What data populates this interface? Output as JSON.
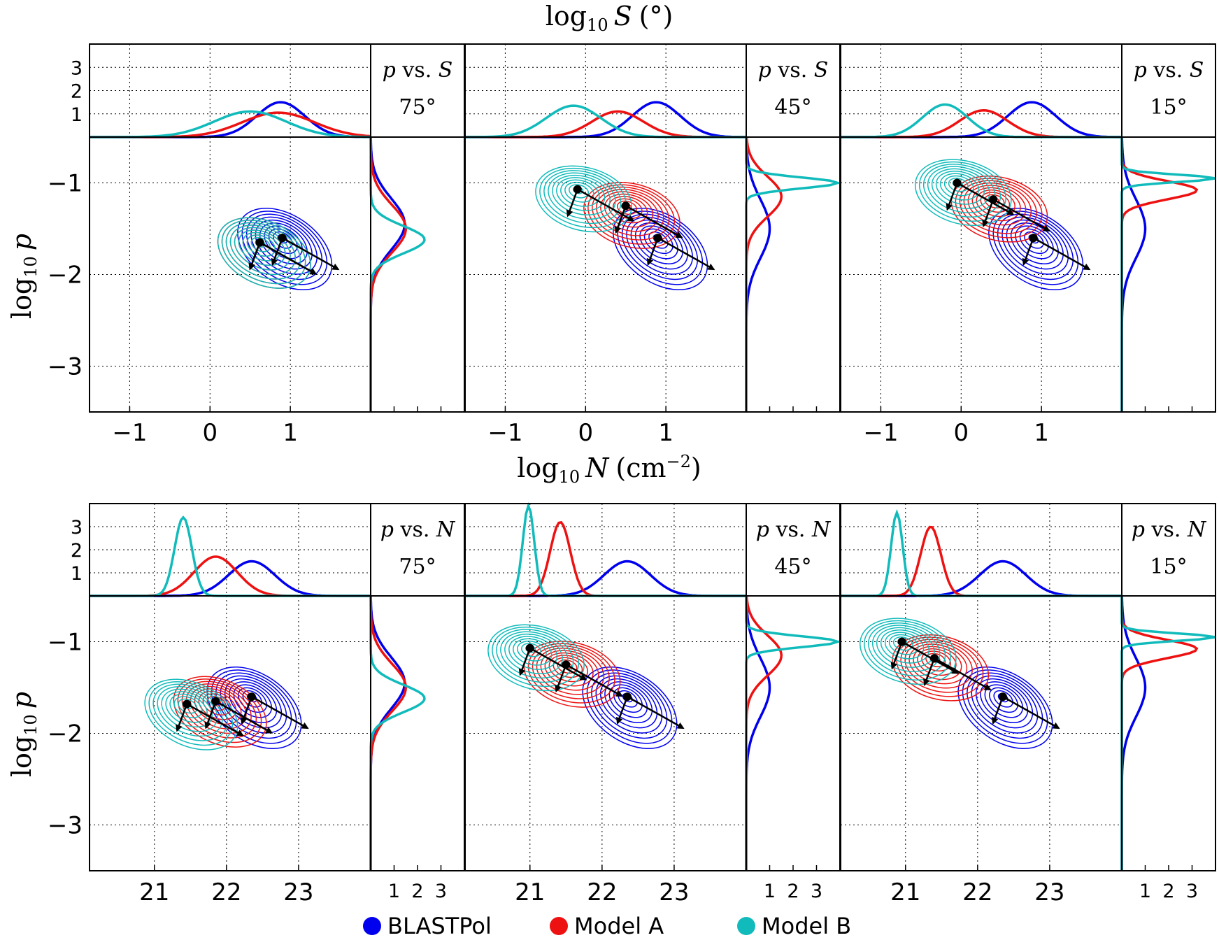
{
  "chart_data": {
    "type": "contour",
    "x_axis_title_top": {
      "prefix": "log",
      "sub": "10",
      "var": "S",
      "unit": "(°)"
    },
    "x_axis_title_bottom": {
      "prefix": "log",
      "sub": "10",
      "var": "N",
      "unit": "(cm",
      "sup": "−2",
      "close": ")"
    },
    "y_axis_title": {
      "prefix": "log",
      "sub": "10",
      "var": "p"
    },
    "rows": [
      {
        "name": "p-vs-S",
        "xlim": [
          -1.5,
          2.0
        ],
        "x_ticks": [
          "−1",
          "0",
          "1"
        ],
        "x_tick_values": [
          -1,
          0,
          1
        ],
        "panels": [
          {
            "label": "p vs. S",
            "label_var": "p",
            "label_mid": " vs. ",
            "label_xvar": "S",
            "angle": "75°",
            "centers": [
              {
                "series": "BLASTPol",
                "x": 0.9,
                "y": -1.6
              },
              {
                "series": "Model A",
                "x": 0.62,
                "y": -1.65
              },
              {
                "series": "Model B",
                "x": 0.62,
                "y": -1.65
              }
            ],
            "hist_x": [
              {
                "series": "BLASTPol",
                "mu": 0.88,
                "sigma": 0.3,
                "peak": 1.5
              },
              {
                "series": "Model A",
                "mu": 0.85,
                "sigma": 0.45,
                "peak": 1.05
              },
              {
                "series": "Model B",
                "mu": 0.5,
                "sigma": 0.45,
                "peak": 1.1
              }
            ],
            "hist_y": [
              {
                "series": "BLASTPol",
                "mu": -1.45,
                "sigma": 0.28,
                "peak": 1.45
              },
              {
                "series": "Model A",
                "mu": -1.5,
                "sigma": 0.26,
                "peak": 1.5
              },
              {
                "series": "Model B",
                "mu": -1.62,
                "sigma": 0.15,
                "peak": 2.3
              }
            ]
          },
          {
            "label": "p vs. S",
            "label_var": "p",
            "label_mid": " vs. ",
            "label_xvar": "S",
            "angle": "45°",
            "centers": [
              {
                "series": "BLASTPol",
                "x": 0.9,
                "y": -1.6
              },
              {
                "series": "Model A",
                "x": 0.5,
                "y": -1.25
              },
              {
                "series": "Model B",
                "x": -0.1,
                "y": -1.07
              }
            ],
            "hist_x": [
              {
                "series": "BLASTPol",
                "mu": 0.88,
                "sigma": 0.3,
                "peak": 1.5
              },
              {
                "series": "Model A",
                "mu": 0.4,
                "sigma": 0.32,
                "peak": 1.1
              },
              {
                "series": "Model B",
                "mu": -0.15,
                "sigma": 0.34,
                "peak": 1.35
              }
            ],
            "hist_y": [
              {
                "series": "BLASTPol",
                "mu": -1.5,
                "sigma": 0.32,
                "peak": 1.0
              },
              {
                "series": "Model A",
                "mu": -1.15,
                "sigma": 0.22,
                "peak": 1.5
              },
              {
                "series": "Model B",
                "mu": -1.0,
                "sigma": 0.06,
                "peak": 3.9
              }
            ]
          },
          {
            "label": "p vs. S",
            "label_var": "p",
            "label_mid": " vs. ",
            "label_xvar": "S",
            "angle": "15°",
            "centers": [
              {
                "series": "BLASTPol",
                "x": 0.9,
                "y": -1.6
              },
              {
                "series": "Model A",
                "x": 0.4,
                "y": -1.18
              },
              {
                "series": "Model B",
                "x": -0.05,
                "y": -1.0
              }
            ],
            "hist_x": [
              {
                "series": "BLASTPol",
                "mu": 0.88,
                "sigma": 0.3,
                "peak": 1.5
              },
              {
                "series": "Model A",
                "mu": 0.28,
                "sigma": 0.3,
                "peak": 1.15
              },
              {
                "series": "Model B",
                "mu": -0.2,
                "sigma": 0.28,
                "peak": 1.4
              }
            ],
            "hist_y": [
              {
                "series": "BLASTPol",
                "mu": -1.5,
                "sigma": 0.32,
                "peak": 1.0
              },
              {
                "series": "Model A",
                "mu": -1.08,
                "sigma": 0.1,
                "peak": 3.2
              },
              {
                "series": "Model B",
                "mu": -0.95,
                "sigma": 0.04,
                "peak": 4.0
              }
            ]
          }
        ]
      },
      {
        "name": "p-vs-N",
        "xlim": [
          20.1,
          24.0
        ],
        "x_ticks": [
          "21",
          "22",
          "23"
        ],
        "x_tick_values": [
          21,
          22,
          23
        ],
        "panels": [
          {
            "label": "p vs. N",
            "label_var": "p",
            "label_mid": " vs. ",
            "label_xvar": "N",
            "angle": "75°",
            "centers": [
              {
                "series": "BLASTPol",
                "x": 22.35,
                "y": -1.6
              },
              {
                "series": "Model A",
                "x": 21.85,
                "y": -1.65
              },
              {
                "series": "Model B",
                "x": 21.45,
                "y": -1.68
              }
            ],
            "hist_x": [
              {
                "series": "BLASTPol",
                "mu": 22.35,
                "sigma": 0.32,
                "peak": 1.5
              },
              {
                "series": "Model A",
                "mu": 21.85,
                "sigma": 0.3,
                "peak": 1.7
              },
              {
                "series": "Model B",
                "mu": 21.4,
                "sigma": 0.12,
                "peak": 3.4
              }
            ],
            "hist_y": [
              {
                "series": "BLASTPol",
                "mu": -1.45,
                "sigma": 0.28,
                "peak": 1.45
              },
              {
                "series": "Model A",
                "mu": -1.5,
                "sigma": 0.26,
                "peak": 1.5
              },
              {
                "series": "Model B",
                "mu": -1.62,
                "sigma": 0.15,
                "peak": 2.3
              }
            ]
          },
          {
            "label": "p vs. N",
            "label_var": "p",
            "label_mid": " vs. ",
            "label_xvar": "N",
            "angle": "45°",
            "centers": [
              {
                "series": "BLASTPol",
                "x": 22.35,
                "y": -1.6
              },
              {
                "series": "Model A",
                "x": 21.5,
                "y": -1.25
              },
              {
                "series": "Model B",
                "x": 21.0,
                "y": -1.07
              }
            ],
            "hist_x": [
              {
                "series": "BLASTPol",
                "mu": 22.35,
                "sigma": 0.32,
                "peak": 1.5
              },
              {
                "series": "Model A",
                "mu": 21.42,
                "sigma": 0.14,
                "peak": 3.2
              },
              {
                "series": "Model B",
                "mu": 20.98,
                "sigma": 0.08,
                "peak": 3.9
              }
            ],
            "hist_y": [
              {
                "series": "BLASTPol",
                "mu": -1.5,
                "sigma": 0.32,
                "peak": 1.0
              },
              {
                "series": "Model A",
                "mu": -1.15,
                "sigma": 0.22,
                "peak": 1.5
              },
              {
                "series": "Model B",
                "mu": -1.0,
                "sigma": 0.06,
                "peak": 3.9
              }
            ]
          },
          {
            "label": "p vs. N",
            "label_var": "p",
            "label_mid": " vs. ",
            "label_xvar": "N",
            "angle": "15°",
            "centers": [
              {
                "series": "BLASTPol",
                "x": 22.35,
                "y": -1.6
              },
              {
                "series": "Model A",
                "x": 21.4,
                "y": -1.18
              },
              {
                "series": "Model B",
                "x": 20.95,
                "y": -1.0
              }
            ],
            "hist_x": [
              {
                "series": "BLASTPol",
                "mu": 22.35,
                "sigma": 0.32,
                "peak": 1.5
              },
              {
                "series": "Model A",
                "mu": 21.35,
                "sigma": 0.14,
                "peak": 3.0
              },
              {
                "series": "Model B",
                "mu": 20.88,
                "sigma": 0.08,
                "peak": 3.6
              }
            ],
            "hist_y": [
              {
                "series": "BLASTPol",
                "mu": -1.5,
                "sigma": 0.32,
                "peak": 1.0
              },
              {
                "series": "Model A",
                "mu": -1.08,
                "sigma": 0.1,
                "peak": 3.2
              },
              {
                "series": "Model B",
                "mu": -0.95,
                "sigma": 0.04,
                "peak": 4.0
              }
            ]
          }
        ]
      }
    ],
    "ylim": [
      -3.5,
      -0.5
    ],
    "y_ticks": [
      "−1",
      "−2",
      "−3"
    ],
    "y_tick_values": [
      -1,
      -2,
      -3
    ],
    "density_ticks": [
      "1",
      "2",
      "3"
    ],
    "density_tick_values": [
      1,
      2,
      3
    ],
    "density_lim": [
      0,
      4
    ],
    "series": [
      {
        "name": "BLASTPol",
        "color": "#0000ee"
      },
      {
        "name": "Model A",
        "color": "#ee1111"
      },
      {
        "name": "Model B",
        "color": "#11bbbb"
      }
    ]
  }
}
